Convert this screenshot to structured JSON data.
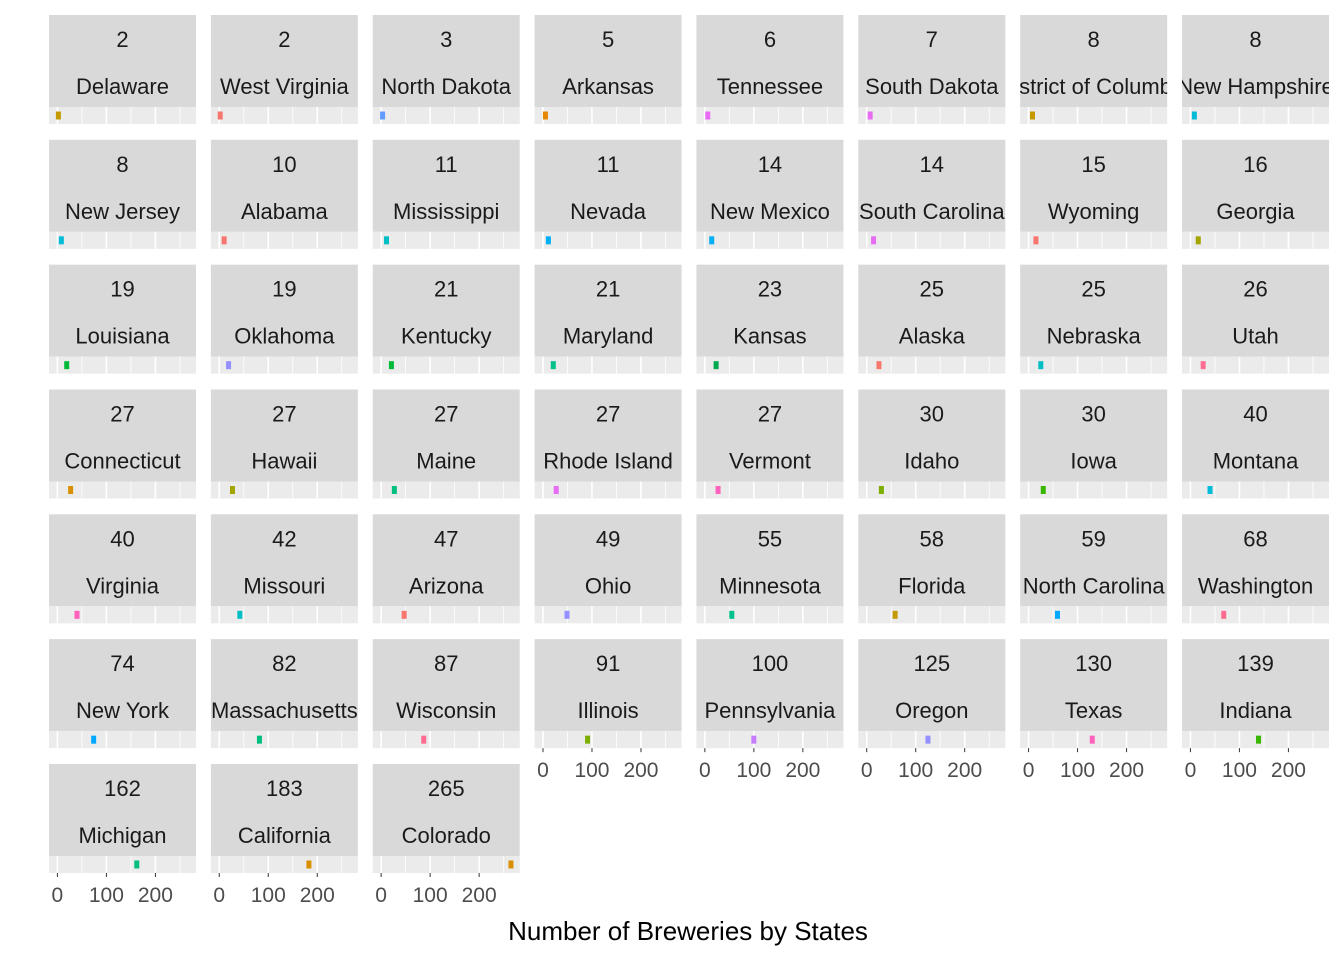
{
  "chart_data": {
    "type": "bar",
    "facet_layout": {
      "columns": 8,
      "rows": 7
    },
    "xlabel": "Number of Breweries by States",
    "ylabel": "",
    "xlim": [
      0,
      265
    ],
    "x_ticks": [
      0,
      100,
      200
    ],
    "grid": true,
    "legend": "none",
    "panels": [
      {
        "count": "2",
        "state": "Delaware",
        "value": 2,
        "color": "#C49A00"
      },
      {
        "count": "2",
        "state": "West Virginia",
        "value": 2,
        "color": "#F8766D"
      },
      {
        "count": "3",
        "state": "North Dakota",
        "value": 3,
        "color": "#619CFF"
      },
      {
        "count": "5",
        "state": "Arkansas",
        "value": 5,
        "color": "#E58700"
      },
      {
        "count": "6",
        "state": "Tennessee",
        "value": 6,
        "color": "#E76BF3"
      },
      {
        "count": "7",
        "state": "South Dakota",
        "value": 7,
        "color": "#E76BF3"
      },
      {
        "count": "8",
        "state": "District of Columbia",
        "value": 8,
        "color": "#C49A00"
      },
      {
        "count": "8",
        "state": "New Hampshire",
        "value": 8,
        "color": "#00BCD8"
      },
      {
        "count": "8",
        "state": "New Jersey",
        "value": 8,
        "color": "#00BCD8"
      },
      {
        "count": "10",
        "state": "Alabama",
        "value": 10,
        "color": "#F8766D"
      },
      {
        "count": "11",
        "state": "Mississippi",
        "value": 11,
        "color": "#00BFC4"
      },
      {
        "count": "11",
        "state": "Nevada",
        "value": 11,
        "color": "#00B0F6"
      },
      {
        "count": "14",
        "state": "New Mexico",
        "value": 14,
        "color": "#00B0F6"
      },
      {
        "count": "14",
        "state": "South Carolina",
        "value": 14,
        "color": "#E76BF3"
      },
      {
        "count": "15",
        "state": "Wyoming",
        "value": 15,
        "color": "#F8766D"
      },
      {
        "count": "16",
        "state": "Georgia",
        "value": 16,
        "color": "#A3A500"
      },
      {
        "count": "19",
        "state": "Louisiana",
        "value": 19,
        "color": "#00BA38"
      },
      {
        "count": "19",
        "state": "Oklahoma",
        "value": 19,
        "color": "#9590FF"
      },
      {
        "count": "21",
        "state": "Kentucky",
        "value": 21,
        "color": "#00BA38"
      },
      {
        "count": "21",
        "state": "Maryland",
        "value": 21,
        "color": "#00C08B"
      },
      {
        "count": "23",
        "state": "Kansas",
        "value": 23,
        "color": "#00A94F"
      },
      {
        "count": "25",
        "state": "Alaska",
        "value": 25,
        "color": "#F8766D"
      },
      {
        "count": "25",
        "state": "Nebraska",
        "value": 25,
        "color": "#00BFC4"
      },
      {
        "count": "26",
        "state": "Utah",
        "value": 26,
        "color": "#FF6C91"
      },
      {
        "count": "27",
        "state": "Connecticut",
        "value": 27,
        "color": "#D89000"
      },
      {
        "count": "27",
        "state": "Hawaii",
        "value": 27,
        "color": "#A3A500"
      },
      {
        "count": "27",
        "state": "Maine",
        "value": 27,
        "color": "#00BF7D"
      },
      {
        "count": "27",
        "state": "Rhode Island",
        "value": 27,
        "color": "#E76BF3"
      },
      {
        "count": "27",
        "state": "Vermont",
        "value": 27,
        "color": "#FF62BC"
      },
      {
        "count": "30",
        "state": "Idaho",
        "value": 30,
        "color": "#7CAE00"
      },
      {
        "count": "30",
        "state": "Iowa",
        "value": 30,
        "color": "#39B600"
      },
      {
        "count": "40",
        "state": "Montana",
        "value": 40,
        "color": "#00BCD8"
      },
      {
        "count": "40",
        "state": "Virginia",
        "value": 40,
        "color": "#FF62BC"
      },
      {
        "count": "42",
        "state": "Missouri",
        "value": 42,
        "color": "#00BFC4"
      },
      {
        "count": "47",
        "state": "Arizona",
        "value": 47,
        "color": "#F8766D"
      },
      {
        "count": "49",
        "state": "Ohio",
        "value": 49,
        "color": "#9590FF"
      },
      {
        "count": "55",
        "state": "Minnesota",
        "value": 55,
        "color": "#00C08B"
      },
      {
        "count": "58",
        "state": "Florida",
        "value": 58,
        "color": "#C49A00"
      },
      {
        "count": "59",
        "state": "North Carolina",
        "value": 59,
        "color": "#00A9FF"
      },
      {
        "count": "68",
        "state": "Washington",
        "value": 68,
        "color": "#FF6C91"
      },
      {
        "count": "74",
        "state": "New York",
        "value": 74,
        "color": "#00A9FF"
      },
      {
        "count": "82",
        "state": "Massachusetts",
        "value": 82,
        "color": "#00BF7D"
      },
      {
        "count": "87",
        "state": "Wisconsin",
        "value": 87,
        "color": "#FF6C91"
      },
      {
        "count": "91",
        "state": "Illinois",
        "value": 91,
        "color": "#7CAE00"
      },
      {
        "count": "100",
        "state": "Pennsylvania",
        "value": 100,
        "color": "#C77CFF"
      },
      {
        "count": "125",
        "state": "Oregon",
        "value": 125,
        "color": "#9590FF"
      },
      {
        "count": "130",
        "state": "Texas",
        "value": 130,
        "color": "#FF62BC"
      },
      {
        "count": "139",
        "state": "Indiana",
        "value": 139,
        "color": "#39B600"
      },
      {
        "count": "162",
        "state": "Michigan",
        "value": 162,
        "color": "#00BF7D"
      },
      {
        "count": "183",
        "state": "California",
        "value": 183,
        "color": "#D89000"
      },
      {
        "count": "265",
        "state": "Colorado",
        "value": 265,
        "color": "#D89000"
      }
    ]
  }
}
